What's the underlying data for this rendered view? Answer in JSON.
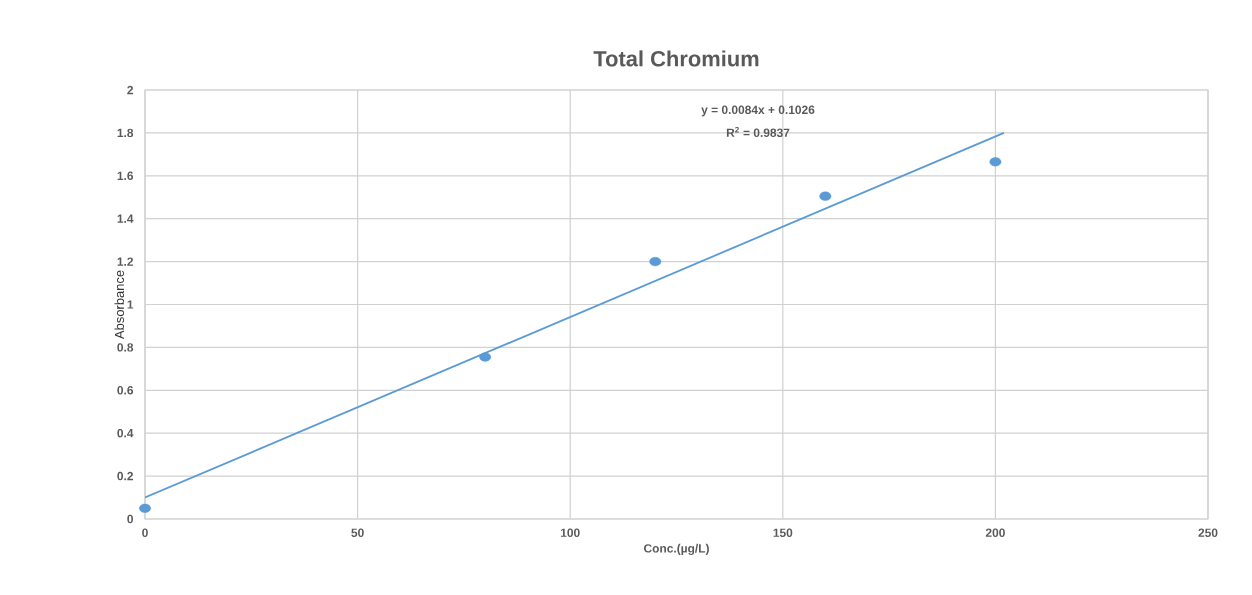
{
  "chart_data": {
    "type": "scatter",
    "title": "Total Chromium",
    "xlabel": "Conc.(µg/L)",
    "ylabel": "Absorbance",
    "series": [
      {
        "color": "#5b9bd5",
        "x": [
          0,
          80,
          120,
          160,
          200
        ],
        "values": [
          0.05,
          0.755,
          1.2,
          1.505,
          1.665
        ],
        "marker": "circle"
      },
      {
        "type": "line",
        "color": "#5b9bd5",
        "x": [
          0,
          202
        ],
        "values": [
          0.1,
          1.8
        ]
      }
    ],
    "annotations": [
      "y = 0.0084x + 0.1026",
      "R$^{2}$ = 0.9837"
    ],
    "xlim": [
      0,
      250
    ],
    "xticks": [
      0,
      50,
      100,
      150,
      200,
      250
    ],
    "ylim": [
      0,
      2
    ],
    "yticks": [
      0,
      {
        "value": 0.2,
        "label": "0.2"
      },
      {
        "value": 0.4,
        "label": "0.4"
      },
      {
        "value": 0.6,
        "label": "0.6"
      },
      {
        "value": 0.8,
        "label": "0.8"
      },
      1,
      {
        "value": 1.2,
        "label": "1.2"
      },
      {
        "value": 1.4,
        "label": "1.4"
      },
      {
        "value": 1.6,
        "label": "1.6"
      },
      {
        "value": 1.8,
        "label": "1.8"
      },
      2
    ],
    "grid": true
  }
}
